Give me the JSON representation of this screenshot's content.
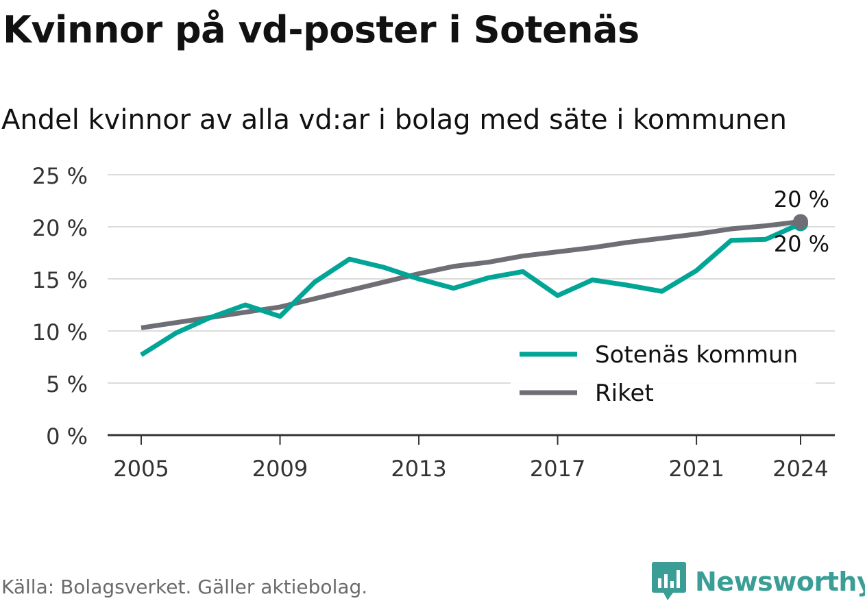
{
  "header": {
    "title": "Kvinnor på vd-poster i Sotenäs",
    "subtitle": "Andel kvinnor av alla vd:ar i bolag med säte i kommunen"
  },
  "footer": {
    "source": "Källa: Bolagsverket. Gäller aktiebolag.",
    "brand": "Newsworthy"
  },
  "colors": {
    "sotenas": "#00a596",
    "riket": "#6f6e75",
    "grid": "#dcdcdc",
    "axis": "#333333",
    "brand": "#3a9e96"
  },
  "chart_data": {
    "type": "line",
    "title": "Kvinnor på vd-poster i Sotenäs",
    "subtitle": "Andel kvinnor av alla vd:ar i bolag med säte i kommunen",
    "x": [
      2005,
      2006,
      2007,
      2008,
      2009,
      2010,
      2011,
      2012,
      2013,
      2014,
      2015,
      2016,
      2017,
      2018,
      2019,
      2020,
      2021,
      2022,
      2023,
      2024
    ],
    "xticks": [
      2005,
      2009,
      2013,
      2017,
      2021,
      2024
    ],
    "xlim": [
      2004,
      2025
    ],
    "ylim": [
      0,
      25
    ],
    "yticks": [
      0,
      5,
      10,
      15,
      20,
      25
    ],
    "ytick_labels": [
      "0 %",
      "5 %",
      "10 %",
      "15 %",
      "20 %",
      "25 %"
    ],
    "series": [
      {
        "name": "Sotenäs kommun",
        "color": "#00a596",
        "values": [
          7.7,
          9.8,
          11.3,
          12.5,
          11.4,
          14.7,
          16.9,
          16.1,
          15.0,
          14.1,
          15.1,
          15.7,
          13.4,
          14.9,
          14.4,
          13.8,
          15.8,
          18.7,
          18.8,
          20.3
        ]
      },
      {
        "name": "Riket",
        "color": "#6f6e75",
        "values": [
          10.3,
          10.8,
          11.3,
          11.8,
          12.3,
          13.1,
          13.9,
          14.7,
          15.5,
          16.2,
          16.6,
          17.2,
          17.6,
          18.0,
          18.5,
          18.9,
          19.3,
          19.8,
          20.1,
          20.5
        ]
      }
    ],
    "end_labels": [
      "20 %",
      "20 %"
    ],
    "legend_position": "bottom-right",
    "grid": true
  }
}
